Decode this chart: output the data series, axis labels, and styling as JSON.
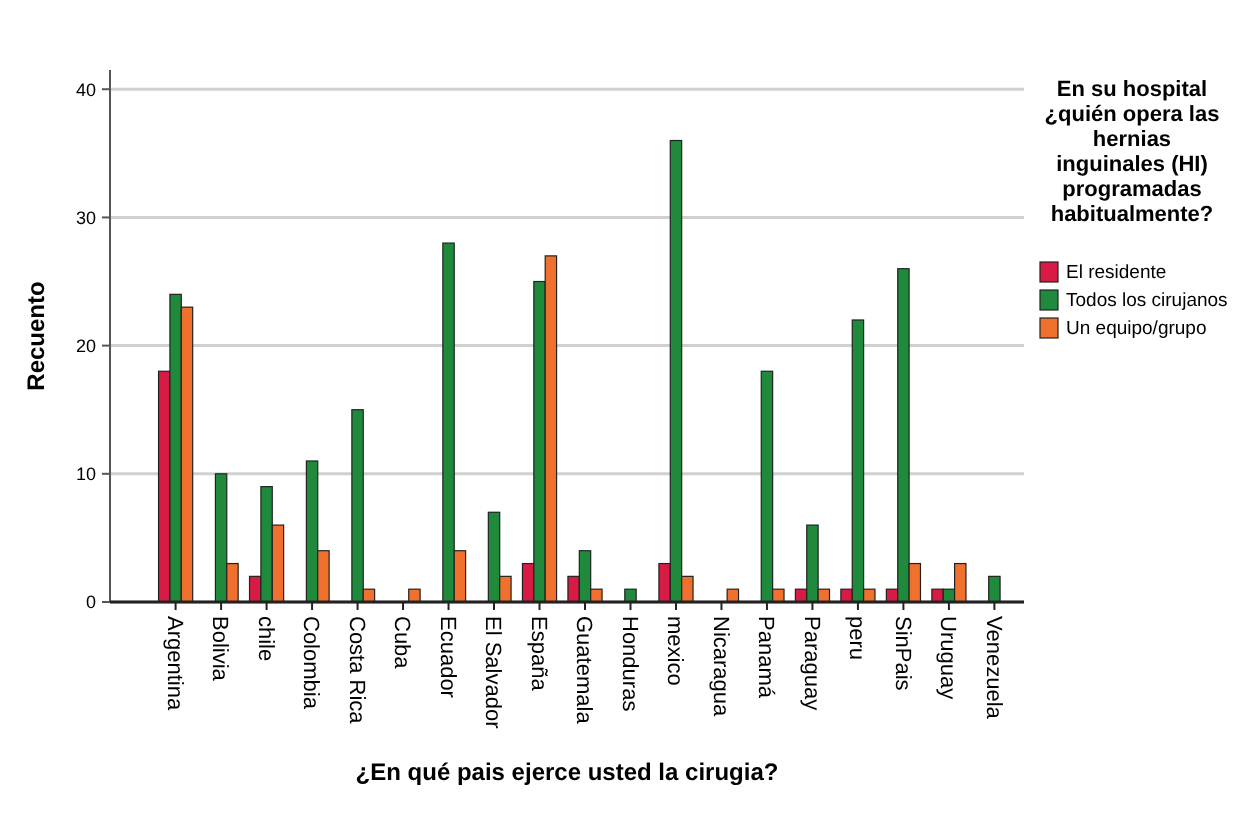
{
  "chart_data": {
    "type": "bar",
    "xlabel": "¿En qué pais ejerce usted la cirugia?",
    "ylabel": "Recuento",
    "legend_title": "En su hospital ¿quién opera las hernias inguinales (HI) programadas habitualmente?",
    "categories": [
      "Argentina",
      "Bolivia",
      "chile",
      "Colombia",
      "Costa Rica",
      "Cuba",
      "Ecuador",
      "El Salvador",
      "España",
      "Guatemala",
      "Honduras",
      "mexico",
      "Nicaragua",
      "Panamá",
      "Paraguay",
      "peru",
      "SinPais",
      "Uruguay",
      "Venezuela"
    ],
    "series": [
      {
        "name": "El residente",
        "color": "#d81b45",
        "values": [
          18,
          null,
          2,
          null,
          null,
          null,
          null,
          null,
          3,
          2,
          null,
          3,
          null,
          null,
          1,
          1,
          1,
          1,
          null
        ]
      },
      {
        "name": "Todos los cirujanos",
        "color": "#1f8a3c",
        "values": [
          24,
          10,
          9,
          11,
          15,
          null,
          28,
          7,
          25,
          4,
          1,
          36,
          null,
          18,
          6,
          22,
          26,
          1,
          2
        ]
      },
      {
        "name": "Un equipo/grupo",
        "color": "#f0702e",
        "values": [
          23,
          3,
          6,
          4,
          1,
          1,
          4,
          2,
          27,
          1,
          null,
          2,
          1,
          1,
          1,
          1,
          3,
          3,
          null
        ]
      }
    ],
    "ylim": [
      0,
      41.5
    ],
    "yticks": [
      0,
      10,
      20,
      30,
      40
    ],
    "grid": "y",
    "legend": "right"
  }
}
